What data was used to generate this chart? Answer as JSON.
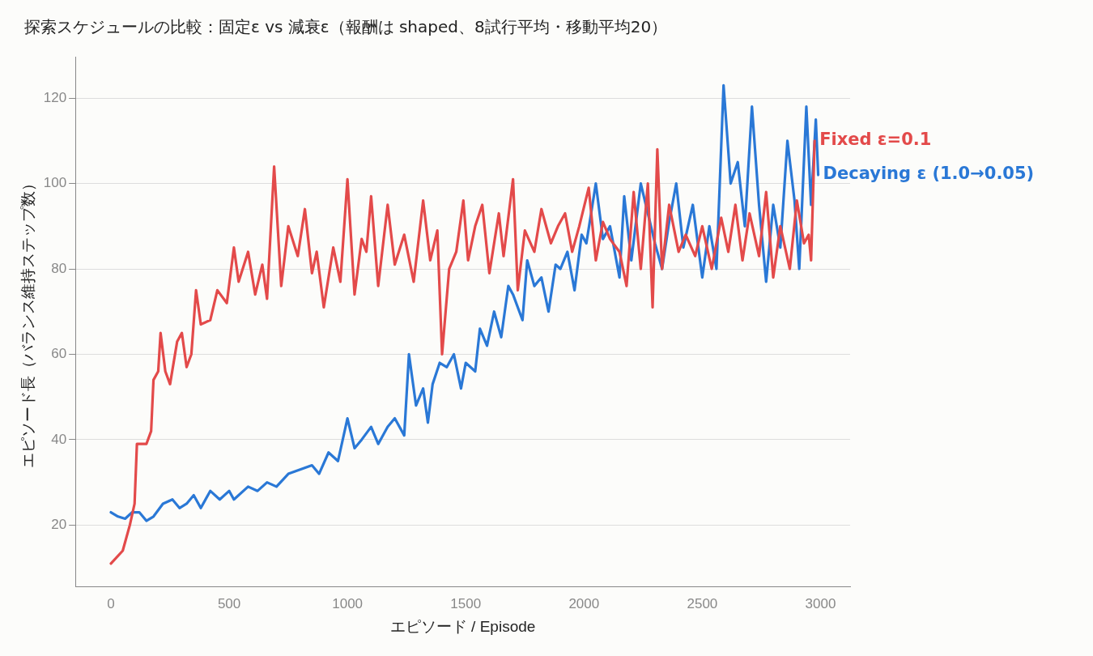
{
  "chart_data": {
    "type": "line",
    "title": "探索スケジュールの比較：固定ε vs 減衰ε（報酬は shaped、8試行平均・移動平均20）",
    "xlabel": "エピソード / Episode",
    "ylabel": "エピソード長（バランス維持ステップ数）",
    "xlim": [
      -150,
      3125
    ],
    "xticks": [
      0,
      500,
      1000,
      1500,
      2000,
      2500,
      3000
    ],
    "ylim": [
      5.5,
      129.7
    ],
    "yticks": [
      20,
      40,
      60,
      80,
      100,
      120
    ],
    "grid": "y",
    "legend": false,
    "marker": "none",
    "line_style": "solid",
    "series": [
      {
        "name": "Fixed ε=0.1",
        "color": "#e34a4a",
        "x": [
          0,
          50,
          80,
          100,
          110,
          150,
          170,
          180,
          200,
          210,
          230,
          250,
          280,
          300,
          320,
          340,
          360,
          380,
          420,
          450,
          490,
          520,
          540,
          580,
          610,
          640,
          660,
          690,
          720,
          750,
          790,
          820,
          850,
          870,
          900,
          940,
          970,
          1000,
          1030,
          1060,
          1080,
          1100,
          1130,
          1170,
          1200,
          1240,
          1280,
          1320,
          1350,
          1380,
          1400,
          1430,
          1460,
          1490,
          1510,
          1540,
          1570,
          1600,
          1640,
          1660,
          1700,
          1720,
          1750,
          1790,
          1820,
          1860,
          1890,
          1920,
          1950,
          1980,
          2020,
          2050,
          2080,
          2110,
          2150,
          2180,
          2210,
          2240,
          2270,
          2290,
          2310,
          2330,
          2360,
          2400,
          2430,
          2470,
          2500,
          2540,
          2580,
          2610,
          2640,
          2670,
          2700,
          2740,
          2770,
          2800,
          2830,
          2870,
          2900,
          2930,
          2950,
          2960,
          2975
        ],
        "values": [
          11,
          14,
          20,
          25,
          39,
          39,
          42,
          54,
          56,
          65,
          56,
          53,
          63,
          65,
          57,
          60,
          75,
          67,
          68,
          75,
          72,
          85,
          77,
          84,
          74,
          81,
          73,
          104,
          76,
          90,
          83,
          94,
          79,
          84,
          71,
          85,
          77,
          101,
          74,
          87,
          84,
          97,
          76,
          95,
          81,
          88,
          77,
          96,
          82,
          89,
          60,
          80,
          84,
          96,
          82,
          90,
          95,
          79,
          93,
          83,
          101,
          75,
          89,
          84,
          94,
          86,
          90,
          93,
          84,
          90,
          99,
          82,
          91,
          87,
          84,
          76,
          98,
          80,
          100,
          71,
          108,
          80,
          95,
          84,
          88,
          83,
          90,
          80,
          92,
          84,
          95,
          82,
          93,
          83,
          98,
          78,
          90,
          80,
          96,
          86,
          88,
          82,
          110
        ]
      },
      {
        "name": "Decaying ε (1.0→0.05)",
        "color": "#2a78d6",
        "x": [
          0,
          30,
          60,
          90,
          120,
          150,
          180,
          220,
          260,
          290,
          320,
          350,
          380,
          420,
          460,
          500,
          520,
          580,
          620,
          660,
          700,
          750,
          800,
          850,
          880,
          920,
          960,
          1000,
          1030,
          1060,
          1100,
          1130,
          1170,
          1200,
          1240,
          1260,
          1290,
          1320,
          1340,
          1360,
          1390,
          1420,
          1450,
          1480,
          1500,
          1540,
          1560,
          1590,
          1620,
          1650,
          1680,
          1700,
          1740,
          1760,
          1790,
          1820,
          1850,
          1880,
          1900,
          1930,
          1960,
          1990,
          2010,
          2050,
          2080,
          2110,
          2150,
          2170,
          2200,
          2240,
          2270,
          2300,
          2330,
          2360,
          2390,
          2420,
          2460,
          2500,
          2530,
          2560,
          2590,
          2620,
          2650,
          2680,
          2710,
          2740,
          2770,
          2800,
          2830,
          2860,
          2890,
          2910,
          2940,
          2960,
          2980,
          2990
        ],
        "values": [
          23,
          22,
          21.5,
          23,
          23,
          21,
          22,
          25,
          26,
          24,
          25,
          27,
          24,
          28,
          26,
          28,
          26,
          29,
          28,
          30,
          29,
          32,
          33,
          34,
          32,
          37,
          35,
          45,
          38,
          40,
          43,
          39,
          43,
          45,
          41,
          60,
          48,
          52,
          44,
          53,
          58,
          57,
          60,
          52,
          58,
          56,
          66,
          62,
          70,
          64,
          76,
          74,
          68,
          82,
          76,
          78,
          70,
          81,
          80,
          84,
          75,
          88,
          86,
          100,
          87,
          90,
          78,
          97,
          82,
          100,
          93,
          86,
          80,
          91,
          100,
          85,
          95,
          78,
          90,
          80,
          123,
          100,
          105,
          90,
          118,
          95,
          77,
          95,
          85,
          110,
          96,
          80,
          118,
          95,
          115,
          102
        ]
      }
    ]
  }
}
